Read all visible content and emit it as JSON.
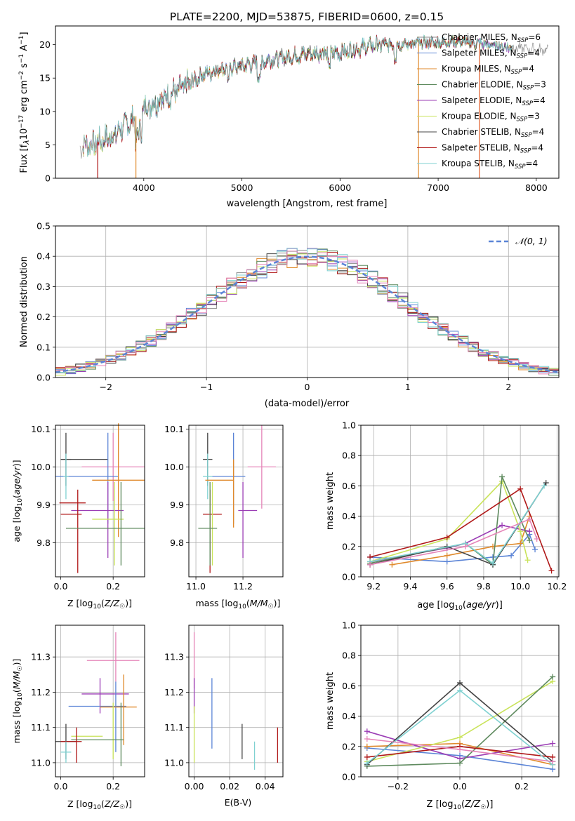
{
  "figure": {
    "title": "PLATE=2200, MJD=53875, FIBERID=0600, z=0.15"
  },
  "colors": {
    "chabrier_miles": "#8c8c8c",
    "salpeter_miles": "#5b84d6",
    "kroupa_miles": "#e08a2c",
    "chabrier_elodie": "#5e8a5e",
    "salpeter_elodie": "#9b3db5",
    "kroupa_elodie": "#c9e35a",
    "chabrier_stelib": "#444444",
    "salpeter_stelib": "#b01818",
    "kroupa_stelib": "#7fd1d1",
    "pink": "#e584b8",
    "normal_fit": "#5b84d6",
    "grid": "#b0b0b0"
  },
  "chart_data": [
    {
      "id": "spectrum",
      "type": "line",
      "title": "",
      "xlabel": "wavelength [Angstrom, rest frame]",
      "ylabel": "Flux [fλ10⁻¹⁷ erg cm⁻² s⁻¹ A⁻¹]",
      "xlim": [
        3100,
        8230
      ],
      "ylim": [
        0,
        22.8
      ],
      "xticks": [
        4000,
        5000,
        6000,
        7000,
        8000
      ],
      "yticks": [
        0,
        5,
        10,
        15,
        20
      ],
      "grid": false,
      "legend_position": "top-right",
      "continuum": {
        "x": [
          3350,
          3500,
          3700,
          3900,
          4000,
          4200,
          4400,
          4600,
          4800,
          5000,
          5200,
          5400,
          5600,
          5800,
          6000,
          6200,
          6400,
          6600,
          6800,
          7000,
          7200,
          7400,
          7600,
          7800,
          8100
        ],
        "y": [
          4.8,
          5.2,
          6.5,
          9.0,
          10.5,
          12.0,
          13.5,
          15.5,
          16.5,
          16.8,
          17.5,
          18.0,
          18.5,
          18.8,
          18.8,
          19.5,
          20.0,
          20.0,
          20.2,
          20.3,
          20.5,
          20.2,
          19.8,
          19.5,
          19.2
        ]
      },
      "series": [
        {
          "name": "Chabrier MILES, N$_{SSP}$=6",
          "label_main": "Chabrier MILES, N",
          "label_sub": "SSP",
          "label_tail": "=6",
          "color": "#8c8c8c"
        },
        {
          "name": "Salpeter MILES, N$_{SSP}$=4",
          "label_main": "Salpeter MILES, N",
          "label_sub": "SSP",
          "label_tail": "=4",
          "color": "#5b84d6"
        },
        {
          "name": "Kroupa MILES, N$_{SSP}$=4",
          "label_main": "Kroupa MILES, N",
          "label_sub": "SSP",
          "label_tail": "=4",
          "color": "#e08a2c"
        },
        {
          "name": "Chabrier ELODIE, N$_{SSP}$=3",
          "label_main": "Chabrier ELODIE, N",
          "label_sub": "SSP",
          "label_tail": "=3",
          "color": "#5e8a5e"
        },
        {
          "name": "Salpeter ELODIE, N$_{SSP}$=4",
          "label_main": "Salpeter ELODIE, N",
          "label_sub": "SSP",
          "label_tail": "=4",
          "color": "#9b3db5"
        },
        {
          "name": "Kroupa ELODIE, N$_{SSP}$=3",
          "label_main": "Kroupa ELODIE, N",
          "label_sub": "SSP",
          "label_tail": "=3",
          "color": "#c9e35a"
        },
        {
          "name": "Chabrier STELIB, N$_{SSP}$=4",
          "label_main": "Chabrier STELIB, N",
          "label_sub": "SSP",
          "label_tail": "=4",
          "color": "#444444"
        },
        {
          "name": "Salpeter STELIB, N$_{SSP}$=4",
          "label_main": "Salpeter STELIB, N",
          "label_sub": "SSP",
          "label_tail": "=4",
          "color": "#b01818"
        },
        {
          "name": "Kroupa STELIB, N$_{SSP}$=4",
          "label_main": "Kroupa STELIB, N",
          "label_sub": "SSP",
          "label_tail": "=4",
          "color": "#7fd1d1"
        }
      ],
      "vertical_drops": [
        {
          "x": 3530,
          "color": "#b01818"
        },
        {
          "x": 3920,
          "color": "#e08a2c"
        },
        {
          "x": 6800,
          "color": "#e08a2c"
        },
        {
          "x": 7420,
          "color": "#e0602c"
        }
      ]
    },
    {
      "id": "residuals",
      "type": "bar",
      "xlabel": "(data-model)/error",
      "ylabel": "Normed distribution",
      "xlim": [
        -2.5,
        2.5
      ],
      "ylim": [
        0,
        0.5
      ],
      "xticks": [
        -2,
        -1,
        0,
        1,
        2
      ],
      "xtick_labels": [
        "−2",
        "−1",
        "0",
        "1",
        "2"
      ],
      "yticks": [
        0.0,
        0.1,
        0.2,
        0.3,
        0.4,
        0.5
      ],
      "ytick_labels": [
        "0.0",
        "0.1",
        "0.2",
        "0.3",
        "0.4",
        "0.5"
      ],
      "grid": true,
      "legend_position": "top-right",
      "normal_label": "𝒩(0, 1)",
      "bin_width": 0.1,
      "x_start": -2.5
    },
    {
      "id": "age_vs_Z",
      "type": "scatter",
      "xlabel": "Z [log₁₀(Z/Z☉)]",
      "ylabel": "age  [log₁₀(age/yr)]",
      "xlim": [
        -0.02,
        0.32
      ],
      "ylim": [
        9.71,
        10.11
      ],
      "xticks": [
        0.0,
        0.2
      ],
      "yticks": [
        9.8,
        9.9,
        10.0,
        10.1
      ],
      "grid": true,
      "points": [
        {
          "x": 0.02,
          "y": 10.02,
          "xerr": 0.02,
          "yerr": 0.07,
          "color": "#444444"
        },
        {
          "x": 0.09,
          "y": 10.02,
          "xerr": 0.09,
          "yerr": 0.0,
          "color": "#444444"
        },
        {
          "x": 0.2,
          "y": 10.0,
          "xerr": 0.12,
          "yerr": 0.09,
          "color": "#e584b8"
        },
        {
          "x": 0.1,
          "y": 9.975,
          "xerr": 0.12,
          "yerr": 0.0,
          "color": "#5b84d6"
        },
        {
          "x": 0.18,
          "y": 9.97,
          "xerr": 0.0,
          "yerr": 0.12,
          "color": "#5b84d6"
        },
        {
          "x": 0.02,
          "y": 9.975,
          "xerr": 0.01,
          "yerr": 0.06,
          "color": "#7fd1d1"
        },
        {
          "x": 0.22,
          "y": 9.965,
          "xerr": 0.1,
          "yerr": 0.15,
          "color": "#e08a2c"
        },
        {
          "x": 0.14,
          "y": 9.885,
          "xerr": 0.1,
          "yerr": 0.0,
          "color": "#9b3db5"
        },
        {
          "x": 0.18,
          "y": 9.86,
          "xerr": 0.0,
          "yerr": 0.1,
          "color": "#9b3db5"
        },
        {
          "x": 0.04,
          "y": 9.875,
          "xerr": 0.04,
          "yerr": 0.0,
          "color": "#b01818"
        },
        {
          "x": 0.065,
          "y": 9.83,
          "xerr": 0.0,
          "yerr": 0.11,
          "color": "#b01818"
        },
        {
          "x": 0.045,
          "y": 9.905,
          "xerr": 0.05,
          "yerr": 0.0,
          "color": "#b01818"
        },
        {
          "x": 0.18,
          "y": 9.862,
          "xerr": 0.06,
          "yerr": 0.0,
          "color": "#c9e35a"
        },
        {
          "x": 0.205,
          "y": 9.85,
          "xerr": 0.0,
          "yerr": 0.11,
          "color": "#c9e35a"
        },
        {
          "x": 0.17,
          "y": 9.838,
          "xerr": 0.15,
          "yerr": 0.0,
          "color": "#5e8a5e"
        },
        {
          "x": 0.23,
          "y": 9.85,
          "xerr": 0.0,
          "yerr": 0.11,
          "color": "#5e8a5e"
        }
      ]
    },
    {
      "id": "age_vs_mass",
      "type": "scatter",
      "xlabel": "mass [log₁₀(M/M☉)]",
      "ylabel": "",
      "xlim": [
        10.97,
        11.37
      ],
      "ylim": [
        9.71,
        10.11
      ],
      "xticks": [
        11.0,
        11.2
      ],
      "yticks": [
        9.8,
        9.9,
        10.0,
        10.1
      ],
      "grid": true,
      "points": [
        {
          "x": 11.05,
          "y": 10.02,
          "xerr": 0.02,
          "yerr": 0.07,
          "color": "#444444"
        },
        {
          "x": 11.05,
          "y": 9.975,
          "xerr": 0.02,
          "yerr": 0.06,
          "color": "#7fd1d1"
        },
        {
          "x": 11.28,
          "y": 10.0,
          "xerr": 0.06,
          "yerr": 0.11,
          "color": "#e584b8"
        },
        {
          "x": 11.14,
          "y": 9.975,
          "xerr": 0.07,
          "yerr": 0.0,
          "color": "#5b84d6"
        },
        {
          "x": 11.16,
          "y": 9.97,
          "xerr": 0.0,
          "yerr": 0.12,
          "color": "#5b84d6"
        },
        {
          "x": 11.1,
          "y": 9.965,
          "xerr": 0.06,
          "yerr": 0.0,
          "color": "#e08a2c"
        },
        {
          "x": 11.16,
          "y": 9.93,
          "xerr": 0.0,
          "yerr": 0.09,
          "color": "#e08a2c"
        },
        {
          "x": 11.22,
          "y": 9.885,
          "xerr": 0.04,
          "yerr": 0.0,
          "color": "#9b3db5"
        },
        {
          "x": 11.2,
          "y": 9.86,
          "xerr": 0.0,
          "yerr": 0.1,
          "color": "#9b3db5"
        },
        {
          "x": 11.07,
          "y": 9.875,
          "xerr": 0.04,
          "yerr": 0.0,
          "color": "#b01818"
        },
        {
          "x": 11.06,
          "y": 9.83,
          "xerr": 0.0,
          "yerr": 0.11,
          "color": "#b01818"
        },
        {
          "x": 11.07,
          "y": 9.85,
          "xerr": 0.0,
          "yerr": 0.11,
          "color": "#c9e35a"
        },
        {
          "x": 11.05,
          "y": 9.838,
          "xerr": 0.04,
          "yerr": 0.0,
          "color": "#5e8a5e"
        },
        {
          "x": 11.06,
          "y": 9.85,
          "xerr": 0.0,
          "yerr": 0.11,
          "color": "#5e8a5e"
        }
      ]
    },
    {
      "id": "weight_vs_age",
      "type": "line",
      "xlabel": "age  [log₁₀(age/yr)]",
      "ylabel": "mass weight",
      "xlim": [
        9.13,
        10.21
      ],
      "ylim": [
        0,
        1.0
      ],
      "xticks": [
        9.2,
        9.4,
        9.6,
        9.8,
        10.0,
        10.2
      ],
      "yticks": [
        0.0,
        0.2,
        0.4,
        0.6,
        0.8,
        1.0
      ],
      "grid": true,
      "series": [
        {
          "color": "#5b84d6",
          "x": [
            9.18,
            9.6,
            9.85,
            9.95,
            10.05,
            10.08
          ],
          "y": [
            0.13,
            0.1,
            0.13,
            0.14,
            0.28,
            0.18
          ]
        },
        {
          "color": "#e08a2c",
          "x": [
            9.3,
            9.6,
            9.85,
            10.0,
            10.05
          ],
          "y": [
            0.08,
            0.14,
            0.2,
            0.22,
            0.4
          ]
        },
        {
          "color": "#9b3db5",
          "x": [
            9.18,
            9.6,
            9.7,
            9.9,
            10.05
          ],
          "y": [
            0.1,
            0.19,
            0.22,
            0.34,
            0.3
          ]
        },
        {
          "color": "#c9e35a",
          "x": [
            9.18,
            9.6,
            9.9,
            10.0,
            10.04
          ],
          "y": [
            0.1,
            0.25,
            0.63,
            0.3,
            0.11
          ]
        },
        {
          "color": "#5e8a5e",
          "x": [
            9.18,
            9.7,
            9.85,
            9.9,
            10.05
          ],
          "y": [
            0.09,
            0.22,
            0.08,
            0.66,
            0.24
          ]
        },
        {
          "color": "#444444",
          "x": [
            9.18,
            9.6,
            9.85,
            10.14
          ],
          "y": [
            0.08,
            0.2,
            0.08,
            0.62
          ]
        },
        {
          "color": "#b01818",
          "x": [
            9.18,
            9.6,
            10.0,
            10.17
          ],
          "y": [
            0.13,
            0.26,
            0.58,
            0.04
          ]
        },
        {
          "color": "#7fd1d1",
          "x": [
            9.18,
            9.7,
            9.85,
            10.13
          ],
          "y": [
            0.1,
            0.22,
            0.09,
            0.6
          ]
        },
        {
          "color": "#e584b8",
          "x": [
            9.18,
            9.7,
            10.05,
            10.09
          ],
          "y": [
            0.08,
            0.2,
            0.38,
            0.25
          ]
        }
      ]
    },
    {
      "id": "mass_vs_Z",
      "type": "scatter",
      "xlabel": "Z [log₁₀(Z/Z☉)]",
      "ylabel": "mass [log₁₀(M/M☉)]",
      "xlim": [
        -0.02,
        0.32
      ],
      "ylim": [
        10.96,
        11.39
      ],
      "xticks": [
        0.0,
        0.2
      ],
      "yticks": [
        11.0,
        11.1,
        11.2,
        11.3
      ],
      "grid": true,
      "points": [
        {
          "x": 0.2,
          "y": 11.29,
          "xerr": 0.1,
          "yerr": 0.0,
          "color": "#e584b8"
        },
        {
          "x": 0.21,
          "y": 11.3,
          "xerr": 0.0,
          "yerr": 0.07,
          "color": "#e584b8"
        },
        {
          "x": 0.17,
          "y": 11.195,
          "xerr": 0.09,
          "yerr": 0.0,
          "color": "#9b3db5"
        },
        {
          "x": 0.15,
          "y": 11.19,
          "xerr": 0.0,
          "yerr": 0.05,
          "color": "#9b3db5"
        },
        {
          "x": 0.14,
          "y": 11.16,
          "xerr": 0.11,
          "yerr": 0.0,
          "color": "#5b84d6"
        },
        {
          "x": 0.21,
          "y": 11.13,
          "xerr": 0.0,
          "yerr": 0.1,
          "color": "#5b84d6"
        },
        {
          "x": 0.22,
          "y": 11.158,
          "xerr": 0.07,
          "yerr": 0.0,
          "color": "#e08a2c"
        },
        {
          "x": 0.24,
          "y": 11.15,
          "xerr": 0.0,
          "yerr": 0.1,
          "color": "#e08a2c"
        },
        {
          "x": 0.1,
          "y": 11.075,
          "xerr": 0.06,
          "yerr": 0.0,
          "color": "#c9e35a"
        },
        {
          "x": 0.2,
          "y": 11.09,
          "xerr": 0.0,
          "yerr": 0.08,
          "color": "#c9e35a"
        },
        {
          "x": 0.14,
          "y": 11.065,
          "xerr": 0.1,
          "yerr": 0.0,
          "color": "#5e8a5e"
        },
        {
          "x": 0.23,
          "y": 11.08,
          "xerr": 0.0,
          "yerr": 0.09,
          "color": "#5e8a5e"
        },
        {
          "x": 0.02,
          "y": 11.06,
          "xerr": 0.04,
          "yerr": 0.05,
          "color": "#444444"
        },
        {
          "x": 0.04,
          "y": 11.06,
          "xerr": 0.04,
          "yerr": 0.0,
          "color": "#b01818"
        },
        {
          "x": 0.06,
          "y": 11.05,
          "xerr": 0.0,
          "yerr": 0.05,
          "color": "#b01818"
        },
        {
          "x": 0.02,
          "y": 11.03,
          "xerr": 0.02,
          "yerr": 0.03,
          "color": "#7fd1d1"
        }
      ]
    },
    {
      "id": "mass_vs_ebv",
      "type": "scatter",
      "xlabel": "E(B-V)",
      "ylabel": "",
      "xlim": [
        -0.003,
        0.05
      ],
      "ylim": [
        10.96,
        11.39
      ],
      "xticks": [
        0.0,
        0.02,
        0.04
      ],
      "yticks": [
        11.0,
        11.1,
        11.2,
        11.3
      ],
      "grid": true,
      "points": [
        {
          "x": 0.0,
          "y": 11.29,
          "xerr": 0.0,
          "yerr": 0.08,
          "color": "#e584b8"
        },
        {
          "x": 0.0,
          "y": 11.19,
          "xerr": 0.0,
          "yerr": 0.05,
          "color": "#9b3db5"
        },
        {
          "x": 0.0,
          "y": 11.08,
          "xerr": 0.0,
          "yerr": 0.08,
          "color": "#c9e35a"
        },
        {
          "x": 0.01,
          "y": 11.14,
          "xerr": 0.0,
          "yerr": 0.1,
          "color": "#5b84d6"
        },
        {
          "x": 0.027,
          "y": 11.06,
          "xerr": 0.0,
          "yerr": 0.05,
          "color": "#444444"
        },
        {
          "x": 0.034,
          "y": 11.02,
          "xerr": 0.0,
          "yerr": 0.04,
          "color": "#7fd1d1"
        },
        {
          "x": 0.047,
          "y": 11.05,
          "xerr": 0.0,
          "yerr": 0.05,
          "color": "#b01818"
        }
      ]
    },
    {
      "id": "weight_vs_Z",
      "type": "line",
      "xlabel": "Z [log₁₀(Z/Z☉)]",
      "ylabel": "mass weight",
      "xlim": [
        -0.32,
        0.32
      ],
      "ylim": [
        0,
        1.0
      ],
      "xticks": [
        -0.2,
        0.0,
        0.2
      ],
      "xtick_labels": [
        "−0.2",
        "0.0",
        "0.2"
      ],
      "yticks": [
        0.0,
        0.2,
        0.4,
        0.6,
        0.8,
        1.0
      ],
      "grid": true,
      "series": [
        {
          "color": "#5b84d6",
          "x": [
            -0.3,
            0.0,
            0.3
          ],
          "y": [
            0.19,
            0.14,
            0.05
          ]
        },
        {
          "color": "#e08a2c",
          "x": [
            -0.3,
            0.0,
            0.3
          ],
          "y": [
            0.2,
            0.22,
            0.08
          ]
        },
        {
          "color": "#9b3db5",
          "x": [
            -0.3,
            0.0,
            0.3
          ],
          "y": [
            0.3,
            0.12,
            0.22
          ]
        },
        {
          "color": "#c9e35a",
          "x": [
            -0.3,
            0.0,
            0.3
          ],
          "y": [
            0.1,
            0.26,
            0.63
          ]
        },
        {
          "color": "#5e8a5e",
          "x": [
            -0.3,
            0.0,
            0.3
          ],
          "y": [
            0.07,
            0.09,
            0.66
          ]
        },
        {
          "color": "#444444",
          "x": [
            -0.3,
            0.0,
            0.3
          ],
          "y": [
            0.08,
            0.62,
            0.1
          ]
        },
        {
          "color": "#b01818",
          "x": [
            -0.3,
            0.0,
            0.3
          ],
          "y": [
            0.13,
            0.2,
            0.13
          ]
        },
        {
          "color": "#7fd1d1",
          "x": [
            -0.3,
            0.0,
            0.3
          ],
          "y": [
            0.09,
            0.57,
            0.08
          ]
        },
        {
          "color": "#e584b8",
          "x": [
            -0.3,
            0.0,
            0.3
          ],
          "y": [
            0.25,
            0.18,
            0.1
          ]
        }
      ]
    }
  ]
}
